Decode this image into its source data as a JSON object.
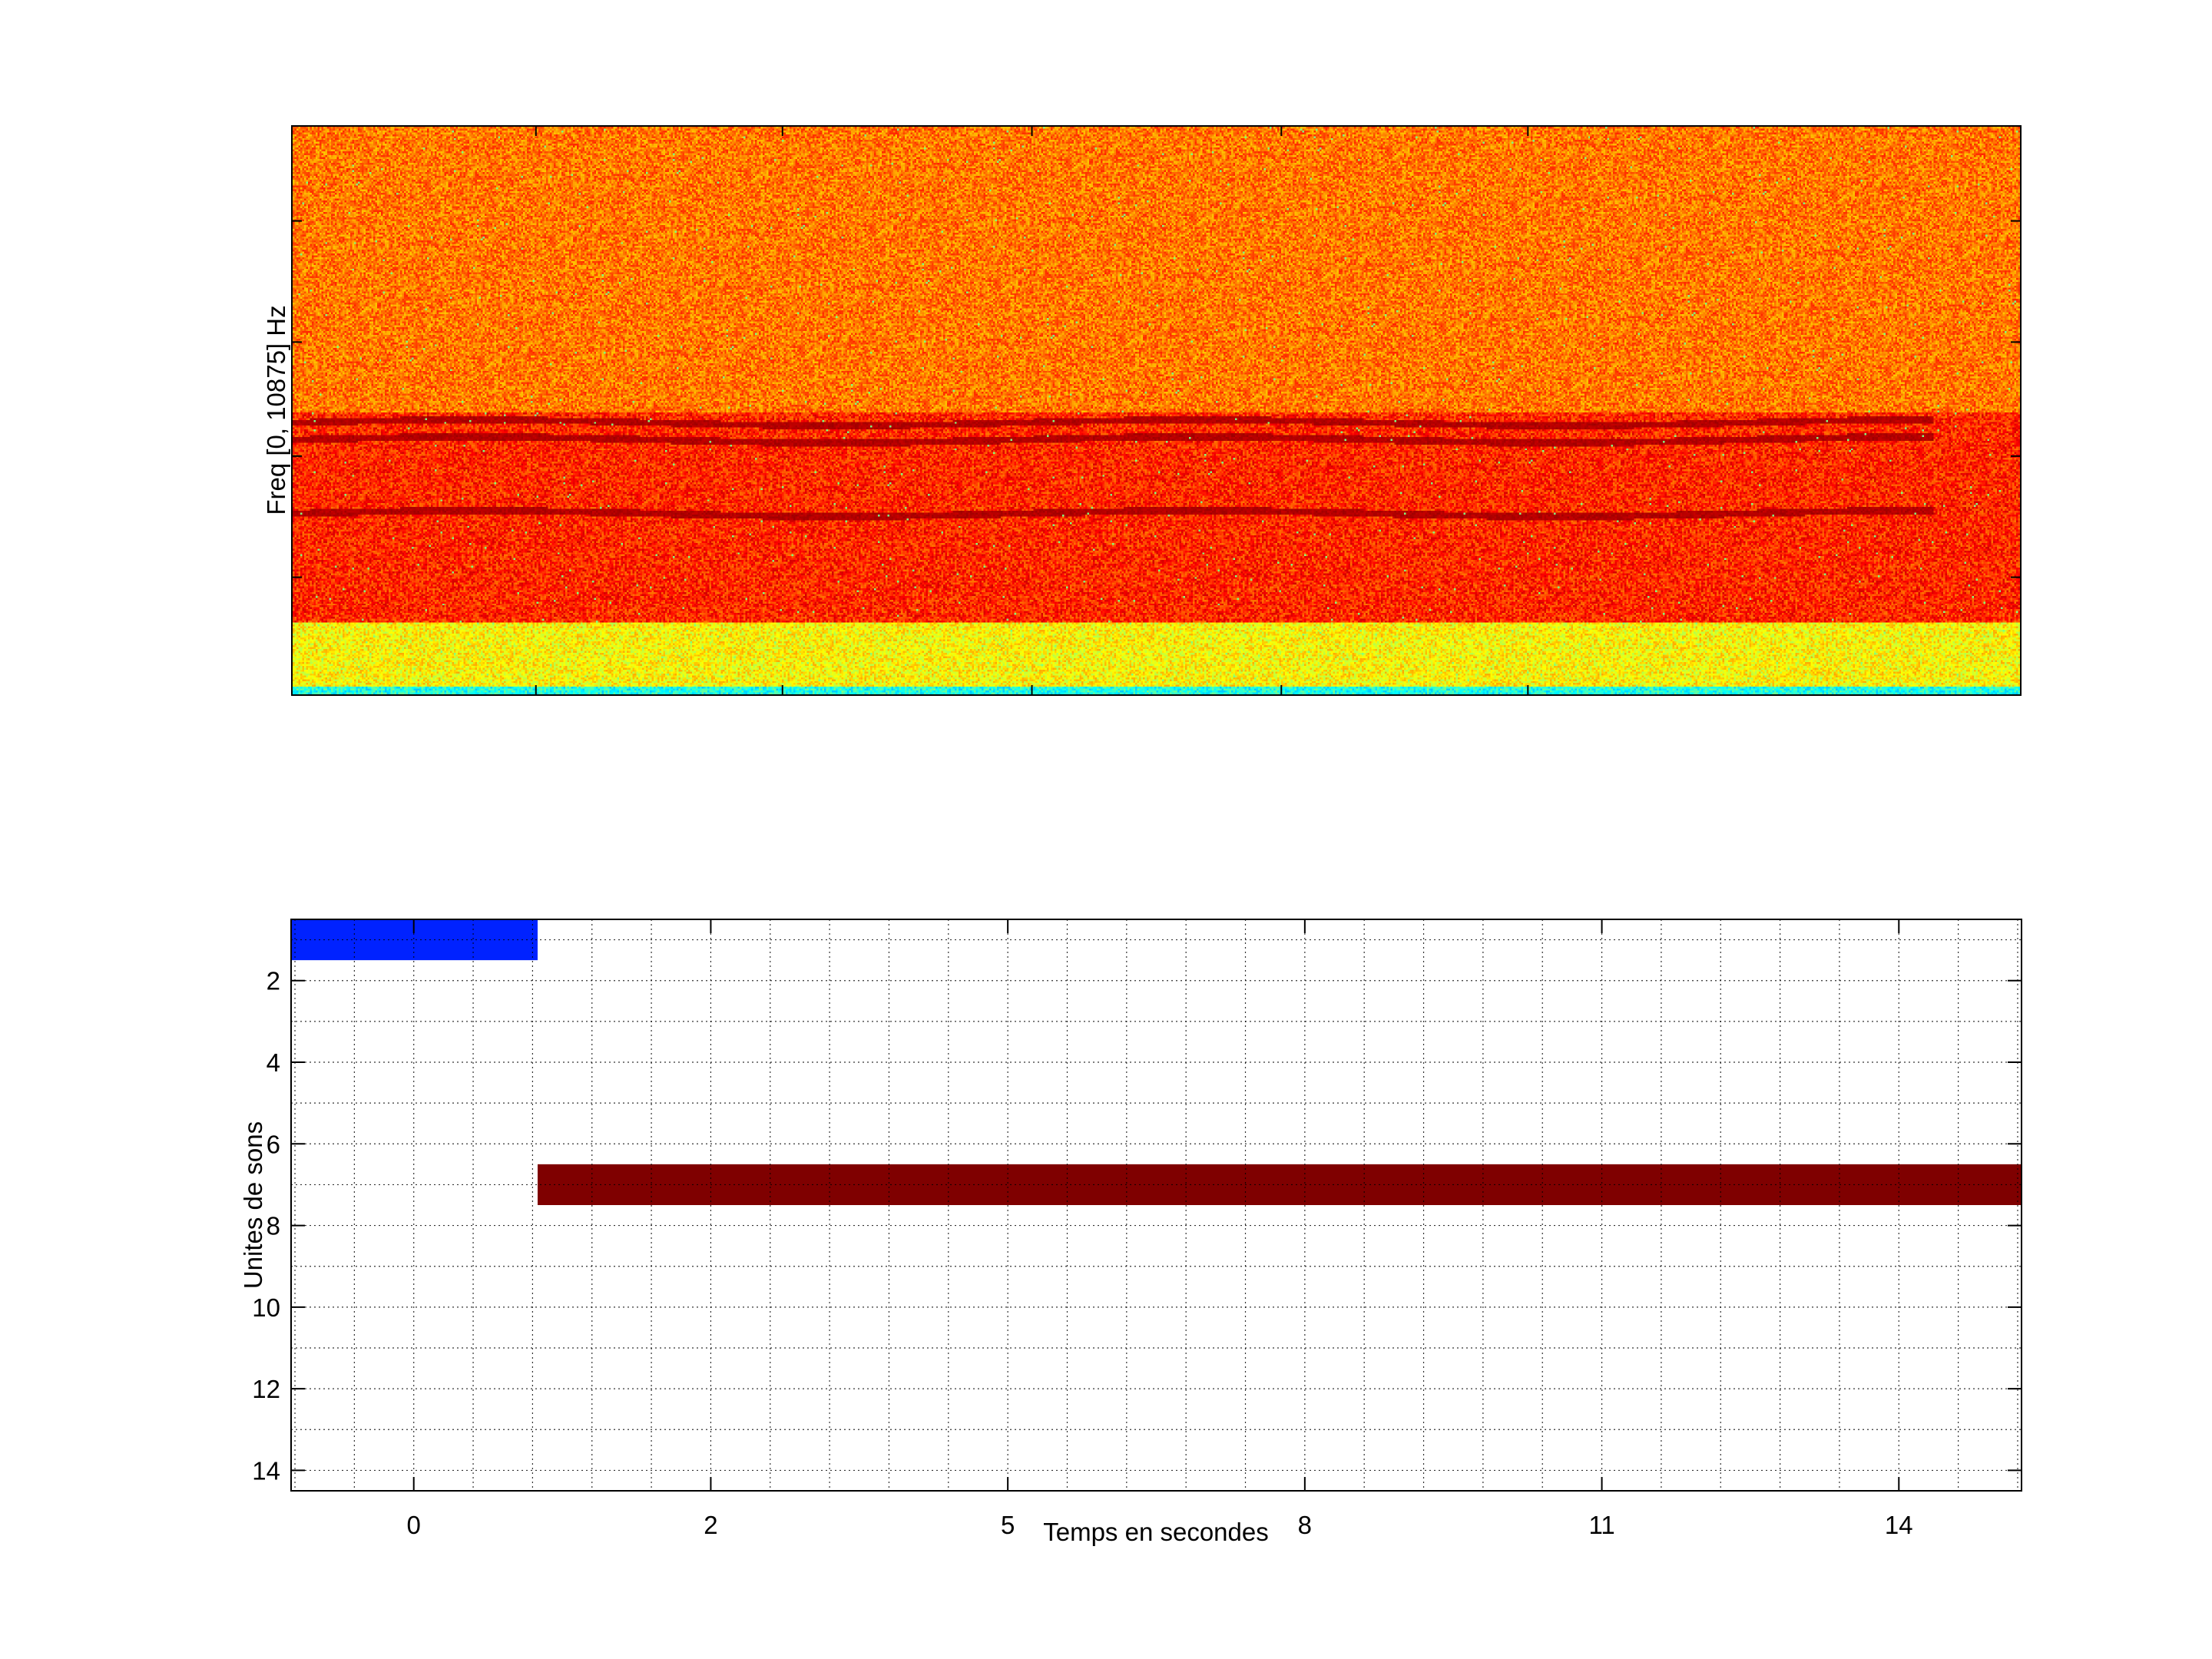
{
  "chart_data": [
    {
      "type": "heatmap",
      "ylabel": "Freq [0, 10875] Hz",
      "xlabel": "",
      "colormap": "jet",
      "bands": [
        {
          "description_level": "dark red harmonic",
          "relative_height": 0.48
        },
        {
          "description_level": "dark red harmonic",
          "relative_height": 0.45
        },
        {
          "description_level": "dark red harmonic",
          "relative_height": 0.32
        }
      ]
    },
    {
      "type": "bar",
      "orientation": "horizontal",
      "xlabel": "Temps en secondes",
      "ylabel": "Unites de sons",
      "xtick_labels": [
        "0",
        "2",
        "5",
        "8",
        "11",
        "14"
      ],
      "xlim_ticks": [
        -0.413,
        5.413
      ],
      "yticks": [
        2,
        4,
        6,
        8,
        10,
        12,
        14
      ],
      "ylim": [
        0.5,
        14.5
      ],
      "y_reversed": true,
      "grid": true,
      "bars": [
        {
          "unit": 1,
          "x_start": -0.413,
          "x_end": 0.417,
          "color": "#0022ff"
        },
        {
          "unit": 7,
          "x_start": 0.417,
          "x_end": 5.413,
          "color": "#7f0000"
        }
      ]
    }
  ]
}
